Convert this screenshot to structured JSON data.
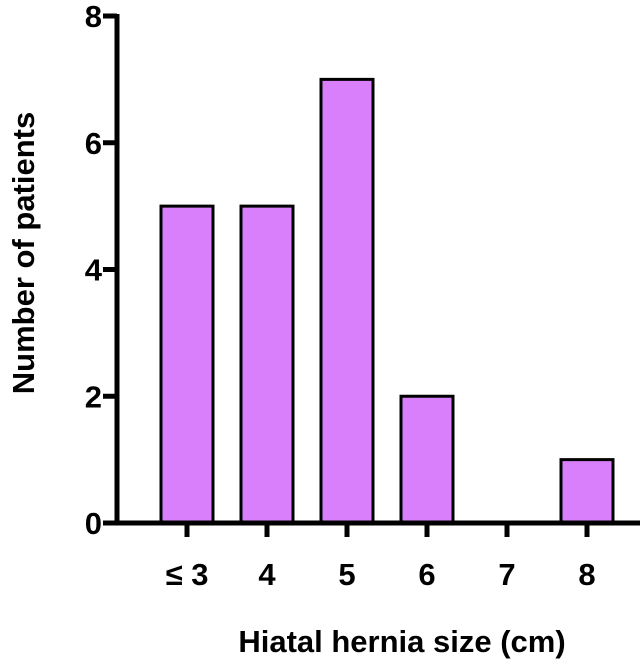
{
  "chart_data": {
    "type": "bar",
    "categories": [
      "≤ 3",
      "4",
      "5",
      "6",
      "7",
      "8"
    ],
    "values": [
      5,
      5,
      7,
      2,
      0,
      1
    ],
    "title": "",
    "xlabel": "Hiatal hernia size (cm)",
    "ylabel": "Number of patients",
    "ylim": [
      0,
      8
    ],
    "yticks": [
      0,
      2,
      4,
      6,
      8
    ],
    "grid": false,
    "bar_color": "#DA7FFB",
    "bar_edge_color": "#000000"
  }
}
